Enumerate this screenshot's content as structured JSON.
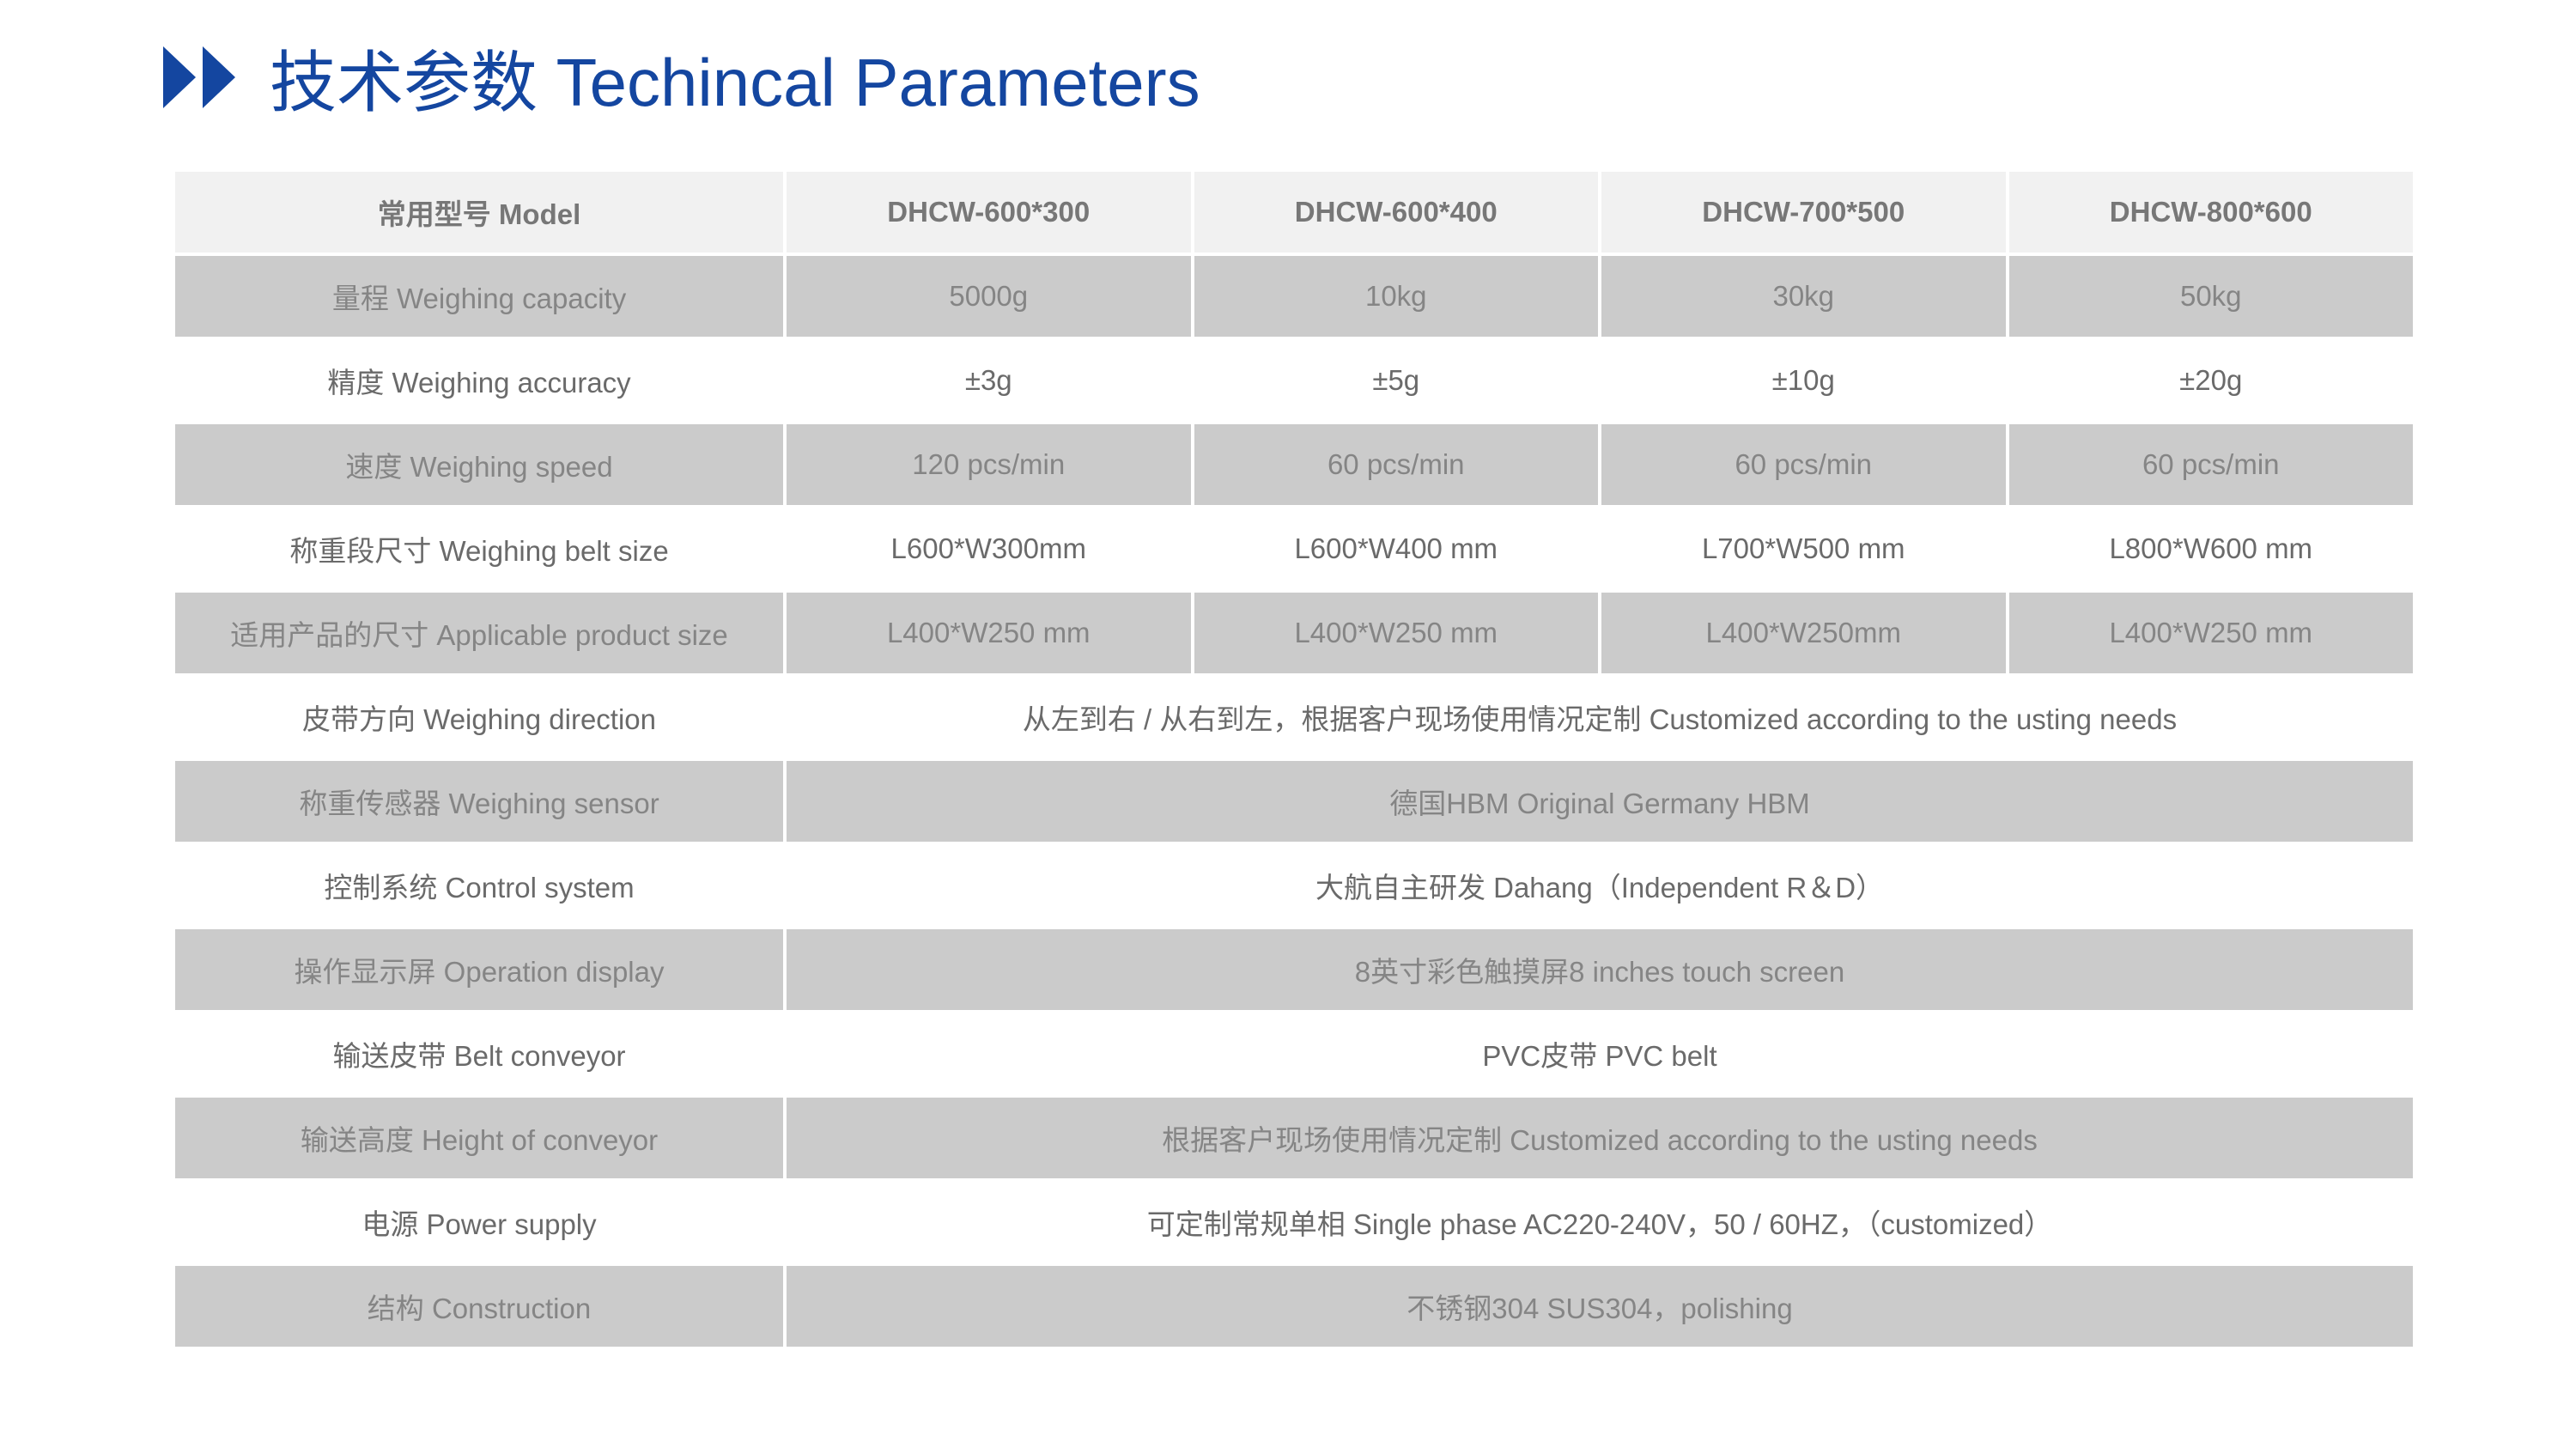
{
  "title": "技术参数 Techincal Parameters",
  "colors": {
    "accent": "#1446a0",
    "header_bg": "#f1f1f1",
    "stripe_bg": "#cbcbcb"
  },
  "icon": "double-play-arrow-icon",
  "header": {
    "label": "常用型号 Model",
    "models": [
      "DHCW-600*300",
      "DHCW-600*400",
      "DHCW-700*500",
      "DHCW-800*600"
    ]
  },
  "rows": [
    {
      "label": "量程 Weighing capacity",
      "values": [
        "5000g",
        "10kg",
        "30kg",
        "50kg"
      ]
    },
    {
      "label": "精度 Weighing accuracy",
      "values": [
        "±3g",
        "±5g",
        "±10g",
        "±20g"
      ]
    },
    {
      "label": "速度 Weighing speed",
      "values": [
        "120 pcs/min",
        "60 pcs/min",
        "60 pcs/min",
        "60 pcs/min"
      ]
    },
    {
      "label": "称重段尺寸 Weighing belt size",
      "values": [
        "L600*W300mm",
        "L600*W400 mm",
        "L700*W500 mm",
        "L800*W600 mm"
      ]
    },
    {
      "label": "适用产品的尺寸 Applicable product size",
      "values": [
        "L400*W250 mm",
        "L400*W250 mm",
        "L400*W250mm",
        "L400*W250 mm"
      ]
    },
    {
      "label": "皮带方向 Weighing direction",
      "values": [
        "从左到右 / 从右到左，根据客户现场使用情况定制 Customized according to the usting needs"
      ]
    },
    {
      "label": "称重传感器 Weighing sensor",
      "values": [
        "德国HBM Original Germany HBM"
      ]
    },
    {
      "label": "控制系统 Control system",
      "values": [
        "大航自主研发 Dahang（Independent R＆D）"
      ]
    },
    {
      "label": "操作显示屏 Operation display",
      "values": [
        "8英寸彩色触摸屏8 inches touch screen"
      ]
    },
    {
      "label": "输送皮带 Belt conveyor",
      "values": [
        "PVC皮带 PVC belt"
      ]
    },
    {
      "label": "输送高度 Height of conveyor",
      "values": [
        "根据客户现场使用情况定制 Customized according to the usting needs"
      ]
    },
    {
      "label": "电源 Power supply",
      "values": [
        "可定制常规单相 Single phase AC220-240V，50 / 60HZ，（customized）"
      ]
    },
    {
      "label": "结构 Construction",
      "values": [
        "不锈钢304 SUS304，polishing"
      ]
    }
  ]
}
